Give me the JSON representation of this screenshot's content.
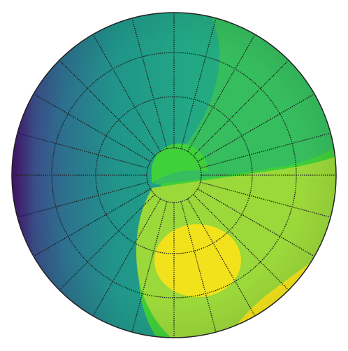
{
  "chart_data": {
    "type": "contour",
    "grid": true
  }
}
